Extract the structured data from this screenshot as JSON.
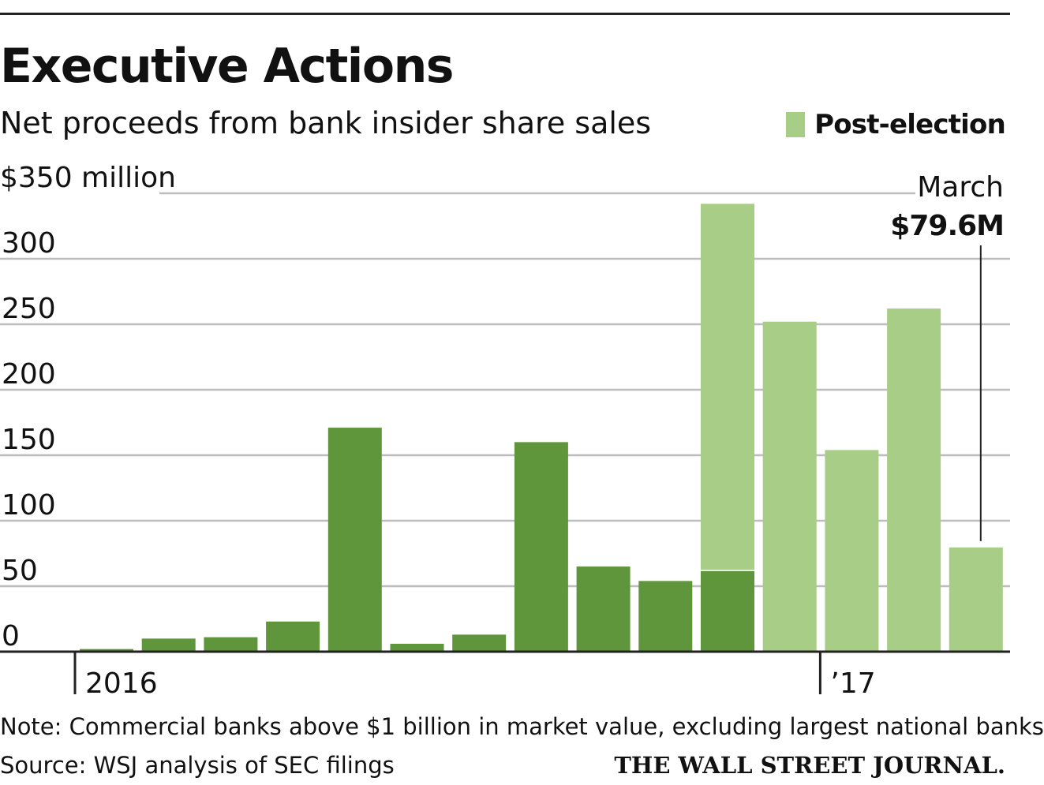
{
  "header": {
    "title": "Executive Actions",
    "subtitle": "Net proceeds from bank insider share sales"
  },
  "colors": {
    "pre_election": "#5f963c",
    "post_election": "#a8cd87",
    "grid": "#bdbdbd",
    "axis": "#222222"
  },
  "chart_data": {
    "type": "bar",
    "stacked": true,
    "title": "Executive Actions",
    "subtitle": "Net proceeds from bank insider share sales",
    "ylabel": "$350 million",
    "ylim": [
      0,
      350
    ],
    "yticks": [
      0,
      50,
      100,
      150,
      200,
      250,
      300,
      350
    ],
    "ytick_labels": [
      "0",
      "50",
      "100",
      "150",
      "200",
      "250",
      "300",
      "$350 million"
    ],
    "grid": true,
    "categories": [
      "Jan 2016",
      "Feb 2016",
      "Mar 2016",
      "Apr 2016",
      "May 2016",
      "Jun 2016",
      "Jul 2016",
      "Aug 2016",
      "Sep 2016",
      "Oct 2016",
      "Nov 2016",
      "Dec 2016",
      "Jan 2017",
      "Feb 2017",
      "Mar 2017"
    ],
    "x_tick_labels": [
      {
        "category": "Jan 2016",
        "label": "2016"
      },
      {
        "category": "Jan 2017",
        "label": "’17"
      }
    ],
    "series": [
      {
        "name": "",
        "color": "#5f963c",
        "values": [
          2,
          10,
          11,
          23,
          171,
          6,
          13,
          160,
          65,
          54,
          62,
          0,
          0,
          0,
          0
        ]
      },
      {
        "name": "Post-election",
        "color": "#a8cd87",
        "values": [
          0,
          0,
          0,
          0,
          0,
          0,
          0,
          0,
          0,
          0,
          280,
          252,
          154,
          262,
          79.6
        ]
      }
    ],
    "legend": {
      "position": "top-right",
      "entries": [
        "Post-election"
      ]
    },
    "annotation": {
      "category": "Mar 2017",
      "month": "March",
      "value_label": "$79.6M"
    }
  },
  "footer": {
    "note": "Note: Commercial banks above $1 billion in market value, excluding largest national banks",
    "source": "Source: WSJ analysis of SEC filings",
    "publisher": "THE WALL STREET JOURNAL."
  }
}
